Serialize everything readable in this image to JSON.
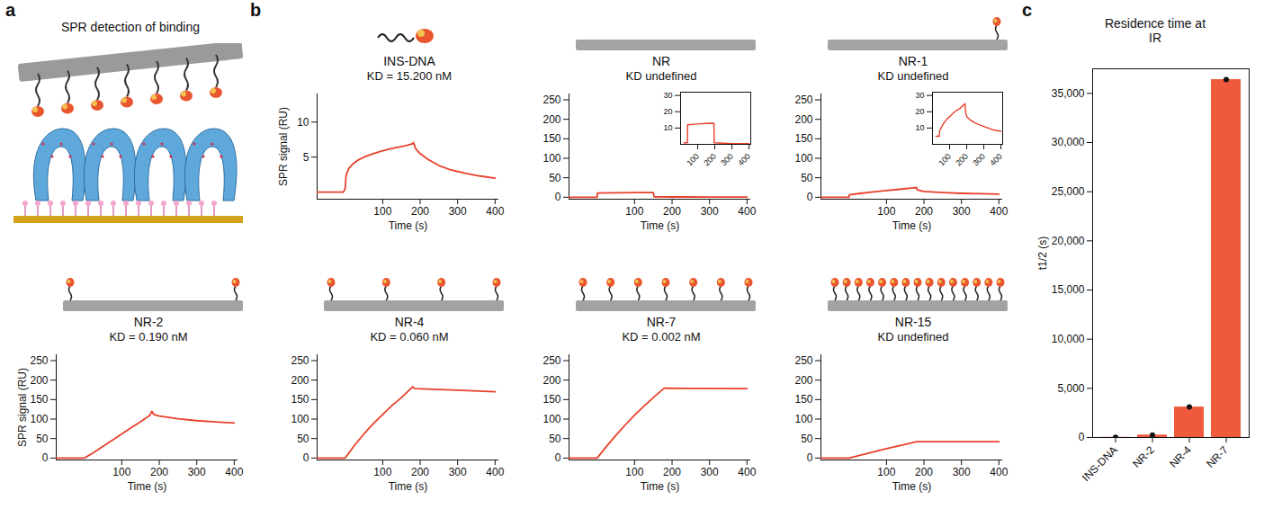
{
  "panel_labels": [
    "a",
    "b",
    "c"
  ],
  "schematic": {
    "title": "SPR detection of binding"
  },
  "chart_data": [
    {
      "type": "line",
      "title": "INS-DNA",
      "annotation": "KD = 15.200 nM",
      "xlabel": "Time (s)",
      "ylabel": "SPR signal (RU)",
      "xlim": [
        -75,
        410
      ],
      "xticks": [
        100,
        200,
        300,
        400
      ],
      "ylim": [
        -1,
        14
      ],
      "yticks": [
        5,
        10
      ],
      "color": "#e8402a",
      "x": [
        -75,
        -40,
        -5,
        0,
        2,
        5,
        10,
        20,
        35,
        50,
        75,
        100,
        130,
        160,
        180,
        182,
        188,
        200,
        220,
        250,
        280,
        320,
        360,
        400
      ],
      "values": [
        0,
        0,
        0,
        0.5,
        2.2,
        2.8,
        3.4,
        4.0,
        4.6,
        5.0,
        5.5,
        5.9,
        6.3,
        6.6,
        6.9,
        7.1,
        6.2,
        5.5,
        4.7,
        3.8,
        3.2,
        2.7,
        2.3,
        2.0
      ]
    },
    {
      "type": "line",
      "title": "NR",
      "annotation": "KD undefined",
      "xlabel": "Time (s)",
      "xlim": [
        -75,
        410
      ],
      "xticks": [
        100,
        200,
        300,
        400
      ],
      "ylim": [
        -5,
        265
      ],
      "yticks": [
        0,
        50,
        100,
        150,
        200,
        250
      ],
      "color": "#e8402a",
      "x": [
        -75,
        -5,
        0,
        1,
        50,
        100,
        148,
        150,
        152,
        200,
        300,
        400
      ],
      "values": [
        0,
        0,
        0,
        11,
        11.5,
        12,
        12,
        12,
        1,
        0.8,
        0.6,
        0.5
      ],
      "inset": {
        "xlim": [
          0,
          410
        ],
        "xticks": [
          100,
          200,
          300,
          400
        ],
        "ylim": [
          0,
          32
        ],
        "yticks": [
          10,
          20,
          30
        ],
        "x": [
          20,
          40,
          41,
          100,
          150,
          195,
          196,
          250,
          300,
          400
        ],
        "values": [
          1,
          1,
          12,
          12.5,
          12.8,
          13,
          1,
          0.7,
          0.5,
          0.4
        ]
      }
    },
    {
      "type": "line",
      "title": "NR-1",
      "annotation": "KD undefined",
      "xlabel": "Time (s)",
      "xlim": [
        -75,
        410
      ],
      "xticks": [
        100,
        200,
        300,
        400
      ],
      "ylim": [
        -5,
        265
      ],
      "yticks": [
        0,
        50,
        100,
        150,
        200,
        250
      ],
      "color": "#e8402a",
      "x": [
        -75,
        -5,
        0,
        1,
        30,
        60,
        100,
        140,
        180,
        182,
        200,
        250,
        300,
        350,
        400
      ],
      "values": [
        0,
        0,
        0,
        6,
        10,
        13,
        17,
        21,
        25,
        19,
        15,
        12,
        10,
        9,
        8
      ],
      "inset": {
        "xlim": [
          0,
          410
        ],
        "xticks": [
          100,
          200,
          300,
          400
        ],
        "ylim": [
          0,
          32
        ],
        "yticks": [
          10,
          20,
          30
        ],
        "x": [
          20,
          40,
          41,
          60,
          80,
          100,
          130,
          160,
          190,
          195,
          200,
          220,
          250,
          300,
          350,
          400
        ],
        "values": [
          5,
          5,
          8,
          12,
          15,
          17,
          20,
          22,
          25,
          19,
          17,
          15,
          13,
          11,
          9,
          8
        ]
      }
    },
    {
      "type": "line",
      "title": "NR-2",
      "annotation": "KD = 0.190 nM",
      "xlabel": "Time (s)",
      "ylabel": "SPR signal (RU)",
      "xlim": [
        -75,
        410
      ],
      "xticks": [
        100,
        200,
        300,
        400
      ],
      "ylim": [
        -5,
        265
      ],
      "yticks": [
        0,
        50,
        100,
        150,
        200,
        250
      ],
      "color": "#e8402a",
      "x": [
        -75,
        -5,
        0,
        25,
        50,
        75,
        100,
        125,
        150,
        175,
        180,
        185,
        200,
        250,
        300,
        350,
        400
      ],
      "values": [
        0,
        0,
        0,
        14,
        30,
        46,
        62,
        78,
        93,
        110,
        120,
        112,
        108,
        101,
        96,
        93,
        90
      ]
    },
    {
      "type": "line",
      "title": "NR-4",
      "annotation": "KD = 0.060 nM",
      "xlabel": "Time (s)",
      "xlim": [
        -75,
        410
      ],
      "xticks": [
        100,
        200,
        300,
        400
      ],
      "ylim": [
        -5,
        265
      ],
      "yticks": [
        0,
        50,
        100,
        150,
        200,
        250
      ],
      "color": "#e8402a",
      "x": [
        -75,
        -5,
        0,
        25,
        50,
        75,
        100,
        125,
        150,
        175,
        180,
        185,
        250,
        300,
        400
      ],
      "values": [
        0,
        0,
        0,
        33,
        62,
        88,
        112,
        135,
        155,
        178,
        183,
        178,
        176,
        174,
        170
      ]
    },
    {
      "type": "line",
      "title": "NR-7",
      "annotation": "KD = 0.002 nM",
      "xlabel": "Time (s)",
      "xlim": [
        -75,
        410
      ],
      "xticks": [
        100,
        200,
        300,
        400
      ],
      "ylim": [
        -5,
        265
      ],
      "yticks": [
        0,
        50,
        100,
        150,
        200,
        250
      ],
      "color": "#e8402a",
      "x": [
        -75,
        -5,
        0,
        25,
        50,
        75,
        100,
        125,
        150,
        175,
        180,
        185,
        400
      ],
      "values": [
        0,
        0,
        0,
        30,
        58,
        85,
        110,
        133,
        155,
        176,
        180,
        179,
        178
      ]
    },
    {
      "type": "line",
      "title": "NR-15",
      "annotation": "KD undefined",
      "xlabel": "Time (s)",
      "xlim": [
        -75,
        410
      ],
      "xticks": [
        100,
        200,
        300,
        400
      ],
      "ylim": [
        -5,
        265
      ],
      "yticks": [
        0,
        50,
        100,
        150,
        200,
        250
      ],
      "color": "#e8402a",
      "x": [
        -75,
        -5,
        0,
        50,
        100,
        150,
        180,
        185,
        400
      ],
      "values": [
        0,
        0,
        0,
        12,
        24,
        35,
        42,
        42,
        42
      ]
    },
    {
      "type": "bar",
      "title": "Residence time at IR",
      "ylabel": "t1/2 (s)",
      "color": "#f05a3c",
      "marker": "circle",
      "categories": [
        "INS-DNA",
        "NR-2",
        "NR-4",
        "NR-7"
      ],
      "values": [
        20,
        250,
        3100,
        36400
      ],
      "ylim": [
        0,
        37500
      ],
      "yticks": [
        0,
        {
          "value": 5000,
          "label": "5,000"
        },
        {
          "value": 10000,
          "label": "10,000"
        },
        {
          "value": 15000,
          "label": "15,000"
        },
        {
          "value": 20000,
          "label": "20,000"
        },
        {
          "value": 25000,
          "label": "25,000"
        },
        {
          "value": 30000,
          "label": "30,000"
        },
        {
          "value": 35000,
          "label": "35,000"
        }
      ]
    }
  ]
}
